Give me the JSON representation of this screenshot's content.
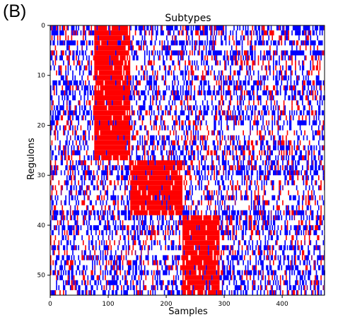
{
  "panel_label": "(B)",
  "chart_data": {
    "type": "heatmap",
    "title": "Subtypes",
    "xlabel": "Samples",
    "ylabel": "Regulons",
    "xlim": [
      0,
      473
    ],
    "ylim": [
      54,
      0
    ],
    "x_ticks": [
      0,
      100,
      200,
      300,
      400
    ],
    "y_ticks": [
      0,
      10,
      20,
      30,
      40,
      50
    ],
    "n_rows": 54,
    "n_cols": 473,
    "colors": {
      "high": "#ff0000",
      "low": "#0000ff",
      "neutral": "#ffffff",
      "overlap": "#800080"
    },
    "grid": false,
    "legend": "none",
    "blocks": [
      {
        "name": "",
        "rows": [
          0,
          27
        ],
        "cols": [
          75,
          138
        ],
        "value": "high"
      },
      {
        "name": "",
        "rows": [
          27,
          38
        ],
        "cols": [
          138,
          227
        ],
        "value": "high"
      },
      {
        "name": "",
        "rows": [
          38,
          54
        ],
        "cols": [
          227,
          292
        ],
        "value": "high"
      }
    ]
  }
}
